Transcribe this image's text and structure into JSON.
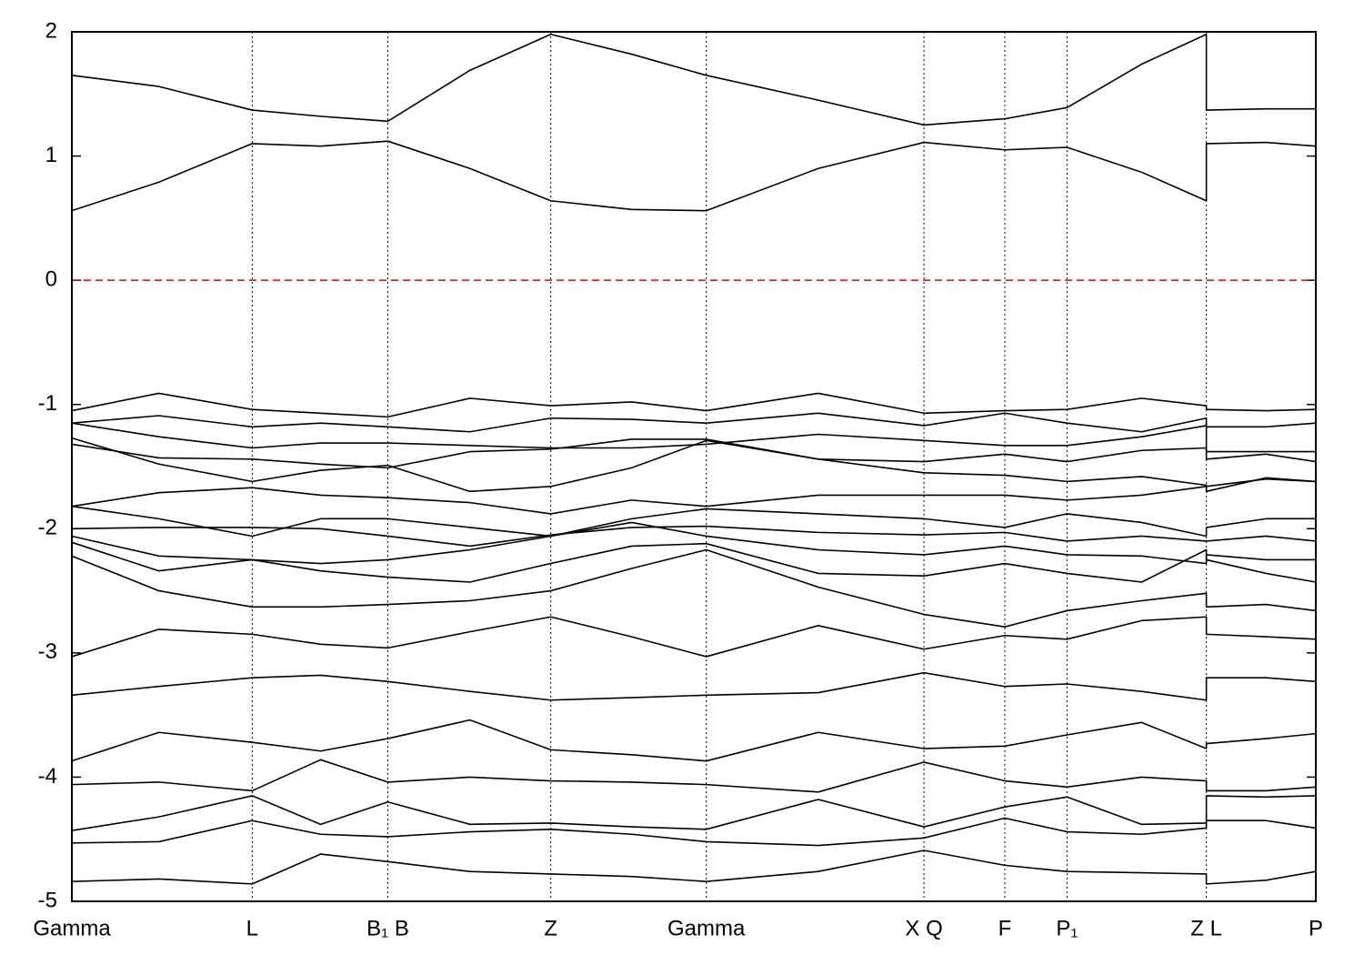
{
  "chart_data": {
    "type": "line",
    "x": [
      0,
      0.07,
      0.145,
      0.2,
      0.254,
      0.32,
      0.385,
      0.45,
      0.51,
      0.6,
      0.685,
      0.75,
      0.8,
      0.86,
      0.912,
      0.912,
      0.96,
      1.0
    ],
    "xlim": [
      0,
      1.0
    ],
    "xticks": [
      {
        "value": 0,
        "label": "Gamma"
      },
      {
        "value": 0.145,
        "label": "L"
      },
      {
        "value": 0.254,
        "label": "B₁ B"
      },
      {
        "value": 0.385,
        "label": "Z"
      },
      {
        "value": 0.51,
        "label": "Gamma"
      },
      {
        "value": 0.685,
        "label": "X Q"
      },
      {
        "value": 0.75,
        "label": "F"
      },
      {
        "value": 0.8,
        "label": "P₁"
      },
      {
        "value": 0.912,
        "label": "Z L"
      },
      {
        "value": 1.0,
        "label": "P"
      }
    ],
    "ylim": [
      -5,
      2
    ],
    "yticks": [
      -5,
      -4,
      -3,
      -2,
      -1,
      0,
      1,
      2
    ],
    "vertical_grid": true,
    "fermi_level": 0,
    "fermi_color": "#e00000",
    "series": [
      {
        "color": "#000000",
        "values": [
          1.65,
          1.56,
          1.37,
          1.32,
          1.28,
          1.69,
          1.98,
          1.82,
          1.65,
          1.45,
          1.25,
          1.3,
          1.39,
          1.74,
          1.98,
          1.37,
          1.38,
          1.38
        ]
      },
      {
        "color": "#000000",
        "values": [
          0.56,
          0.79,
          1.1,
          1.08,
          1.12,
          0.9,
          0.64,
          0.57,
          0.56,
          0.9,
          1.11,
          1.05,
          1.07,
          0.87,
          0.64,
          1.1,
          1.11,
          1.08
        ]
      },
      {
        "color": "#000000",
        "values": [
          -1.05,
          -0.91,
          -1.04,
          -1.07,
          -1.1,
          -0.95,
          -1.01,
          -0.98,
          -1.05,
          -0.91,
          -1.07,
          -1.05,
          -1.04,
          -0.95,
          -1.01,
          -1.04,
          -1.05,
          -1.04
        ]
      },
      {
        "color": "#000000",
        "values": [
          -1.15,
          -1.09,
          -1.18,
          -1.15,
          -1.18,
          -1.22,
          -1.11,
          -1.12,
          -1.15,
          -1.07,
          -1.17,
          -1.07,
          -1.15,
          -1.22,
          -1.11,
          -1.18,
          -1.18,
          -1.15
        ]
      },
      {
        "color": "#000000",
        "values": [
          -1.15,
          -1.26,
          -1.35,
          -1.31,
          -1.31,
          -1.33,
          -1.35,
          -1.35,
          -1.32,
          -1.24,
          -1.29,
          -1.33,
          -1.33,
          -1.26,
          -1.17,
          -1.38,
          -1.38,
          -1.38
        ]
      },
      {
        "color": "#000000",
        "values": [
          -1.27,
          -1.48,
          -1.62,
          -1.53,
          -1.49,
          -1.7,
          -1.66,
          -1.51,
          -1.29,
          -1.44,
          -1.46,
          -1.4,
          -1.46,
          -1.37,
          -1.35,
          -1.44,
          -1.4,
          -1.46
        ]
      },
      {
        "color": "#000000",
        "values": [
          -1.32,
          -1.43,
          -1.44,
          -1.48,
          -1.51,
          -1.38,
          -1.36,
          -1.28,
          -1.28,
          -1.44,
          -1.55,
          -1.57,
          -1.62,
          -1.58,
          -1.65,
          -1.66,
          -1.6,
          -1.62
        ]
      },
      {
        "color": "#000000",
        "values": [
          -1.82,
          -1.71,
          -1.67,
          -1.73,
          -1.75,
          -1.79,
          -1.88,
          -1.77,
          -1.82,
          -1.73,
          -1.73,
          -1.73,
          -1.77,
          -1.73,
          -1.66,
          -1.7,
          -1.59,
          -1.62
        ]
      },
      {
        "color": "#000000",
        "values": [
          -1.82,
          -1.92,
          -2.06,
          -1.92,
          -1.92,
          -1.99,
          -2.06,
          -1.92,
          -1.84,
          -1.88,
          -1.92,
          -1.99,
          -1.88,
          -1.95,
          -2.06,
          -1.99,
          -1.92,
          -1.92
        ]
      },
      {
        "color": "#000000",
        "values": [
          -2.0,
          -1.99,
          -1.99,
          -2.0,
          -2.06,
          -2.14,
          -2.05,
          -1.99,
          -1.98,
          -2.03,
          -2.05,
          -2.03,
          -2.1,
          -2.06,
          -2.1,
          -2.1,
          -2.06,
          -2.1
        ]
      },
      {
        "color": "#000000",
        "values": [
          -2.06,
          -2.22,
          -2.25,
          -2.28,
          -2.25,
          -2.17,
          -2.06,
          -1.95,
          -2.06,
          -2.17,
          -2.21,
          -2.14,
          -2.21,
          -2.22,
          -2.28,
          -2.21,
          -2.25,
          -2.25
        ]
      },
      {
        "color": "#000000",
        "values": [
          -2.11,
          -2.34,
          -2.25,
          -2.34,
          -2.39,
          -2.43,
          -2.28,
          -2.14,
          -2.12,
          -2.36,
          -2.38,
          -2.28,
          -2.36,
          -2.43,
          -2.17,
          -2.25,
          -2.36,
          -2.43
        ]
      },
      {
        "color": "#000000",
        "values": [
          -2.22,
          -2.5,
          -2.63,
          -2.63,
          -2.61,
          -2.58,
          -2.5,
          -2.32,
          -2.17,
          -2.47,
          -2.69,
          -2.79,
          -2.66,
          -2.58,
          -2.52,
          -2.63,
          -2.61,
          -2.66
        ]
      },
      {
        "color": "#000000",
        "values": [
          -3.03,
          -2.81,
          -2.85,
          -2.93,
          -2.96,
          -2.83,
          -2.71,
          -2.87,
          -3.03,
          -2.78,
          -2.97,
          -2.86,
          -2.89,
          -2.74,
          -2.71,
          -2.85,
          -2.87,
          -2.89
        ]
      },
      {
        "color": "#000000",
        "values": [
          -3.34,
          -3.27,
          -3.2,
          -3.18,
          -3.23,
          -3.31,
          -3.38,
          -3.36,
          -3.34,
          -3.32,
          -3.16,
          -3.27,
          -3.25,
          -3.31,
          -3.38,
          -3.2,
          -3.2,
          -3.23
        ]
      },
      {
        "color": "#000000",
        "values": [
          -3.87,
          -3.64,
          -3.72,
          -3.79,
          -3.69,
          -3.54,
          -3.78,
          -3.82,
          -3.87,
          -3.64,
          -3.77,
          -3.75,
          -3.66,
          -3.56,
          -3.77,
          -3.73,
          -3.69,
          -3.65
        ]
      },
      {
        "color": "#000000",
        "values": [
          -4.06,
          -4.04,
          -4.11,
          -3.86,
          -4.04,
          -4.0,
          -4.03,
          -4.04,
          -4.06,
          -4.12,
          -3.88,
          -4.03,
          -4.08,
          -4.0,
          -4.03,
          -4.11,
          -4.11,
          -4.08
        ]
      },
      {
        "color": "#000000",
        "values": [
          -4.43,
          -4.32,
          -4.15,
          -4.38,
          -4.2,
          -4.38,
          -4.37,
          -4.4,
          -4.42,
          -4.18,
          -4.4,
          -4.24,
          -4.16,
          -4.38,
          -4.37,
          -4.15,
          -4.16,
          -4.15
        ]
      },
      {
        "color": "#000000",
        "values": [
          -4.53,
          -4.52,
          -4.35,
          -4.46,
          -4.48,
          -4.44,
          -4.42,
          -4.46,
          -4.52,
          -4.55,
          -4.49,
          -4.33,
          -4.44,
          -4.46,
          -4.41,
          -4.35,
          -4.35,
          -4.41
        ]
      },
      {
        "color": "#000000",
        "values": [
          -4.84,
          -4.82,
          -4.86,
          -4.62,
          -4.68,
          -4.76,
          -4.78,
          -4.8,
          -4.84,
          -4.76,
          -4.59,
          -4.71,
          -4.76,
          -4.77,
          -4.78,
          -4.86,
          -4.83,
          -4.76
        ]
      }
    ]
  }
}
